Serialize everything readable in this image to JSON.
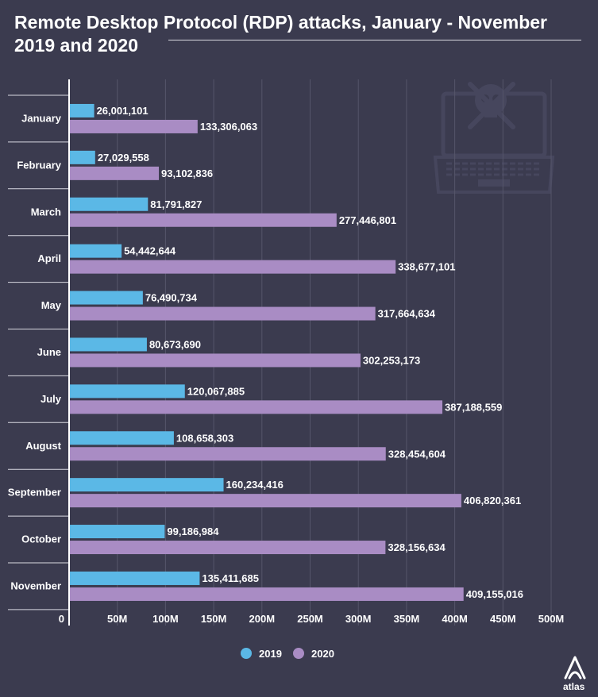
{
  "title": "Remote Desktop Protocol (RDP) attacks, January - November 2019 and 2020",
  "logo": {
    "name": "atlas-logo",
    "text": "atlas"
  },
  "colors": {
    "background": "#3b3b4f",
    "series_2019": "#5bb8e6",
    "series_2020": "#a98cc4",
    "grid": "#55556a"
  },
  "chart_data": {
    "type": "bar",
    "orientation": "horizontal",
    "title": "Remote Desktop Protocol (RDP) attacks, January - November 2019 and 2020",
    "categories": [
      "January",
      "February",
      "March",
      "April",
      "May",
      "June",
      "July",
      "August",
      "September",
      "October",
      "November"
    ],
    "series": [
      {
        "name": "2019",
        "values": [
          26001101,
          27029558,
          81791827,
          54442644,
          76490734,
          80673690,
          120067885,
          108658303,
          160234416,
          99186984,
          135411685
        ],
        "labels": [
          "26,001,101",
          "27,029,558",
          "81,791,827",
          "54,442,644",
          "76,490,734",
          "80,673,690",
          "120,067,885",
          "108,658,303",
          "160,234,416",
          "99,186,984",
          "135,411,685"
        ]
      },
      {
        "name": "2020",
        "values": [
          133306063,
          93102836,
          277446801,
          338677101,
          317664634,
          302253173,
          387188559,
          328454604,
          406820361,
          328156634,
          409155016
        ],
        "labels": [
          "133,306,063",
          "93,102,836",
          "277,446,801",
          "338,677,101",
          "317,664,634",
          "302,253,173",
          "387,188,559",
          "328,454,604",
          "406,820,361",
          "328,156,634",
          "409,155,016"
        ]
      }
    ],
    "xlim": [
      0,
      500000000
    ],
    "x_ticks": [
      0,
      50000000,
      100000000,
      150000000,
      200000000,
      250000000,
      300000000,
      350000000,
      400000000,
      450000000,
      500000000
    ],
    "x_tick_labels": [
      "0",
      "50M",
      "100M",
      "150M",
      "200M",
      "250M",
      "300M",
      "350M",
      "400M",
      "450M",
      "500M"
    ],
    "grid": true,
    "legend": {
      "placement": "bottom-center",
      "entries": [
        "2019",
        "2020"
      ]
    }
  }
}
